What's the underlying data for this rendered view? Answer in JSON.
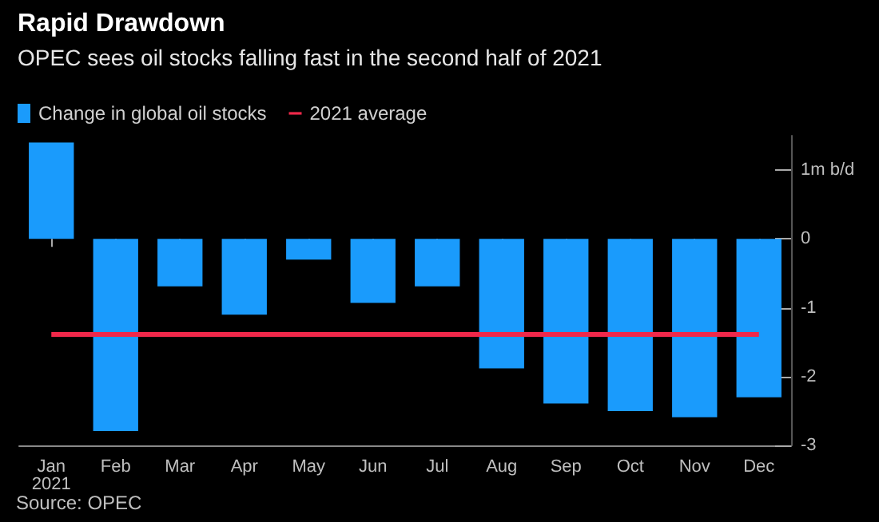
{
  "chart_data": {
    "type": "bar",
    "title": "Rapid Drawdown",
    "subtitle": "OPEC sees oil stocks falling fast in the second half of 2021",
    "categories": [
      "Jan\n2021",
      "Feb",
      "Mar",
      "Apr",
      "May",
      "Jun",
      "Jul",
      "Aug",
      "Sep",
      "Oct",
      "Nov",
      "Dec"
    ],
    "series": [
      {
        "name": "Change in global oil stocks",
        "color": "#1a9bfc",
        "values": [
          1.4,
          -2.79,
          -0.69,
          -1.1,
          -0.3,
          -0.93,
          -0.69,
          -1.88,
          -2.39,
          -2.5,
          -2.59,
          -2.3
        ]
      }
    ],
    "ylim": [
      -3,
      1.5
    ],
    "yticks": [
      {
        "value": 1,
        "label": "1m b/d"
      },
      0,
      -1,
      -2,
      -3
    ],
    "ref_lines": [
      {
        "axis": "y",
        "value": -1.39,
        "label": "2021 average",
        "color": "#f0284a"
      }
    ],
    "grid": false,
    "legend": "top left",
    "annotations": [
      "Source: OPEC"
    ]
  }
}
